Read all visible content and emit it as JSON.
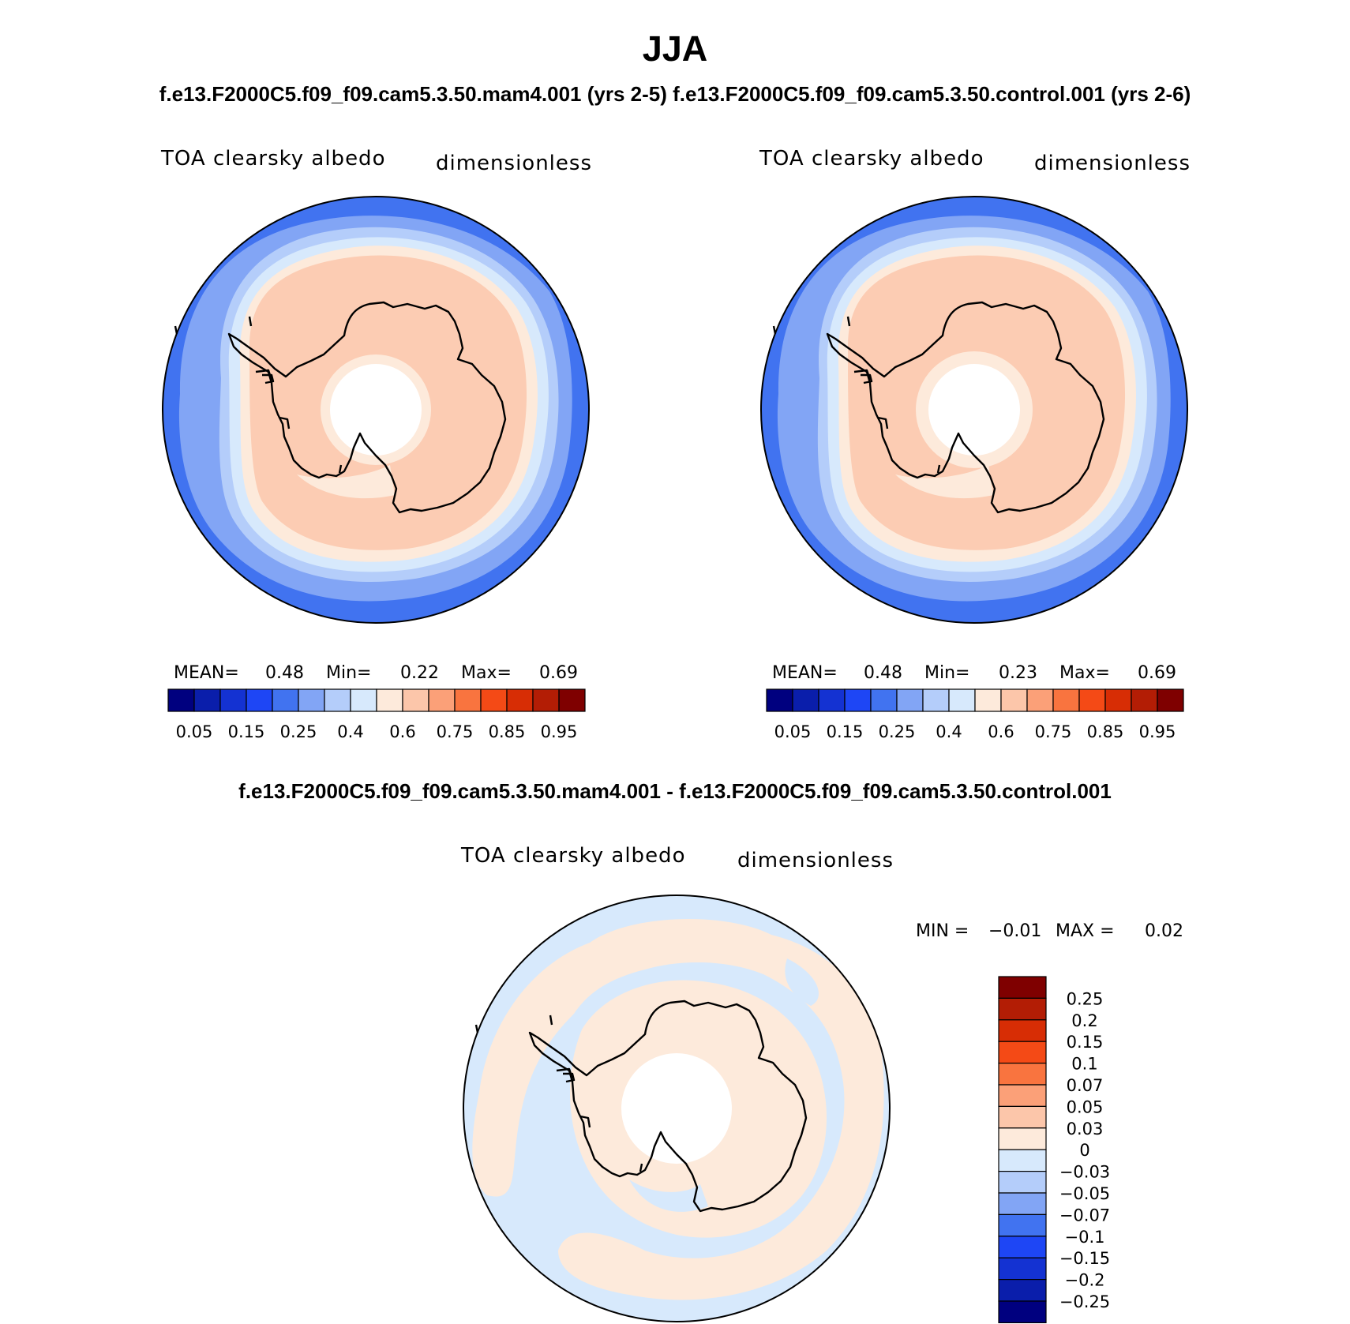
{
  "figure": {
    "season": "JJA",
    "subtitle": "f.e13.F2000C5.f09_f09.cam5.3.50.mam4.001 (yrs 2-5) f.e13.F2000C5.f09_f09.cam5.3.50.control.001 (yrs 2-6)",
    "diff_title": "f.e13.F2000C5.f09_f09.cam5.3.50.mam4.001 - f.e13.F2000C5.f09_f09.cam5.3.50.control.001"
  },
  "panels": [
    {
      "variable": "TOA clearsky albedo",
      "units": "dimensionless",
      "stats": {
        "mean_label": "MEAN=",
        "mean": "0.48",
        "min_label": "Min=",
        "min": "0.22",
        "max_label": "Max=",
        "max": "0.69"
      }
    },
    {
      "variable": "TOA clearsky albedo",
      "units": "dimensionless",
      "stats": {
        "mean_label": "MEAN=",
        "mean": "0.48",
        "min_label": "Min=",
        "min": "0.23",
        "max_label": "Max=",
        "max": "0.69"
      }
    },
    {
      "variable": "TOA clearsky albedo",
      "units": "dimensionless",
      "stats": {
        "min_label": "MIN =",
        "min": "−0.01",
        "max_label": "MAX =",
        "max": "0.02"
      }
    }
  ],
  "colorbar_abs": {
    "colors": [
      "#00007f",
      "#0a1eab",
      "#1432d2",
      "#1e46f5",
      "#4173f0",
      "#82a5f5",
      "#b4cdfa",
      "#d7e9fc",
      "#fdeadb",
      "#fcc6aa",
      "#fba078",
      "#f9743f",
      "#f44a16",
      "#d72d05",
      "#b31d05",
      "#7f0000"
    ],
    "tick_labels": [
      "0.05",
      "0.15",
      "0.25",
      "0.4",
      "0.6",
      "0.75",
      "0.85",
      "0.95"
    ]
  },
  "colorbar_diff": {
    "colors": [
      "#7f0000",
      "#b31d05",
      "#d72d05",
      "#f44a16",
      "#f9743f",
      "#fba078",
      "#fcc6aa",
      "#fdeadb",
      "#d7e9fc",
      "#b4cdfa",
      "#82a5f5",
      "#4173f0",
      "#1e46f5",
      "#1432d2",
      "#0a1eab",
      "#00007f"
    ],
    "tick_labels": [
      "0.25",
      "0.2",
      "0.15",
      "0.1",
      "0.07",
      "0.05",
      "0.03",
      "0",
      "−0.03",
      "−0.05",
      "−0.07",
      "−0.1",
      "−0.15",
      "−0.2",
      "−0.25"
    ]
  }
}
